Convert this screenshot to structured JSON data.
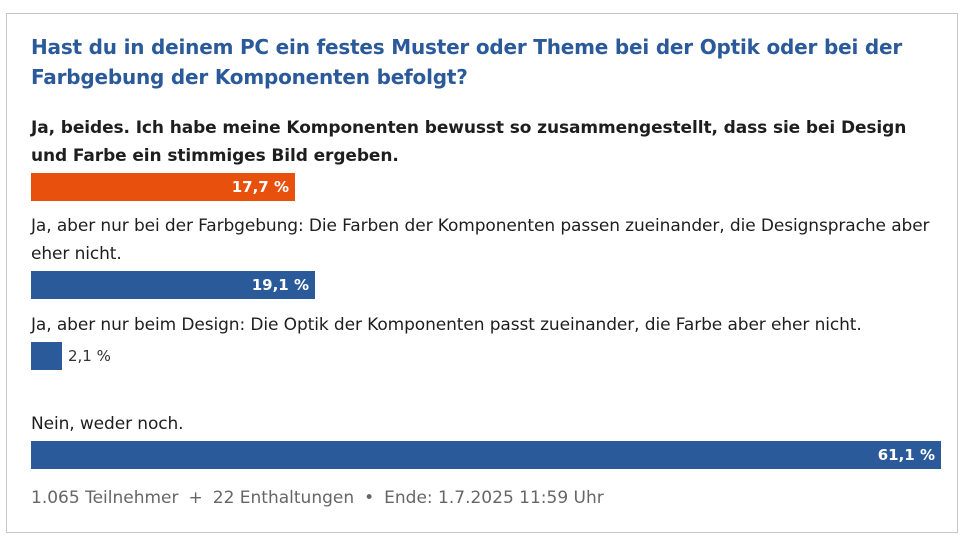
{
  "poll": {
    "question": "Hast du in deinem PC ein festes Muster oder Theme bei der Optik oder bei der Farbgebung der Komponenten befolgt?",
    "options": [
      {
        "label": "Ja, beides. Ich habe meine Komponenten bewusst so zusammengestellt, dass sie bei Design und Farbe ein stimmiges Bild ergeben.",
        "percent_label": "17,7 %",
        "percent": 17.7,
        "selected": true,
        "bar_color": "#e8500e"
      },
      {
        "label": "Ja, aber nur bei der Farbgebung: Die Farben der Komponenten passen zueinander, die Designsprache aber eher nicht.",
        "percent_label": "19,1 %",
        "percent": 19.1,
        "selected": false,
        "bar_color": "#2b5a9a"
      },
      {
        "label": "Ja, aber nur beim Design: Die Optik der Komponenten passt zueinander, die Farbe aber eher nicht.",
        "percent_label": "2,1 %",
        "percent": 2.1,
        "selected": false,
        "bar_color": "#2b5a9a"
      },
      {
        "label": "Nein, weder noch.",
        "percent_label": "61,1 %",
        "percent": 61.1,
        "selected": false,
        "bar_color": "#2b5a9a"
      }
    ],
    "footer": {
      "participants": "1.065 Teilnehmer",
      "separator1": "+",
      "abstentions": "22 Enthaltungen",
      "separator2": "•",
      "end": "Ende: 1.7.2025 11:59 Uhr"
    }
  },
  "colors": {
    "question": "#2b5a9a",
    "highlight_bar": "#e8500e",
    "bar": "#2b5a9a"
  }
}
